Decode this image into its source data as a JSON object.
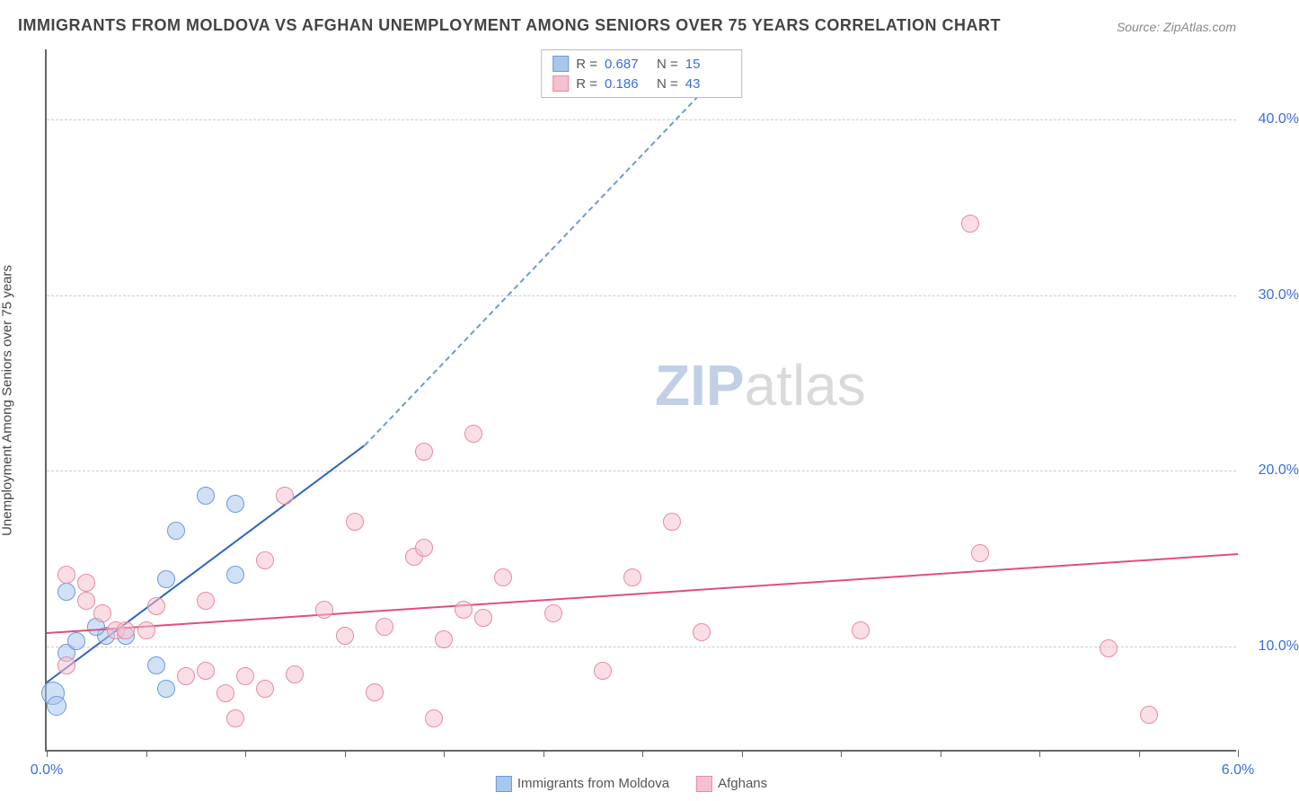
{
  "title": "IMMIGRANTS FROM MOLDOVA VS AFGHAN UNEMPLOYMENT AMONG SENIORS OVER 75 YEARS CORRELATION CHART",
  "source": "Source: ZipAtlas.com",
  "ylabel": "Unemployment Among Seniors over 75 years",
  "watermark_z": "ZIP",
  "watermark_rest": "atlas",
  "chart": {
    "type": "scatter",
    "xlim": [
      0.0,
      6.0
    ],
    "ylim": [
      4.0,
      44.0
    ],
    "yticks": [
      10.0,
      20.0,
      30.0,
      40.0
    ],
    "ytick_labels": [
      "10.0%",
      "20.0%",
      "30.0%",
      "40.0%"
    ],
    "xtick_positions": [
      0.0,
      0.5,
      1.0,
      1.5,
      2.0,
      2.5,
      3.0,
      3.5,
      4.0,
      4.5,
      5.0,
      5.5,
      6.0
    ],
    "xtick_labels_show": {
      "0.0": "0.0%",
      "6.0": "6.0%"
    },
    "grid_color": "#cccccc",
    "axis_color": "#666666",
    "background_color": "#ffffff",
    "tick_label_color": "#3a6fd8"
  },
  "series": [
    {
      "name": "Immigrants from Moldova",
      "fill_color": "#a9c7ec",
      "stroke_color": "#6b9bd8",
      "line_color": "#2f64c0",
      "marker_radius": 10,
      "R": "0.687",
      "N": "15",
      "trend": {
        "x1": 0.0,
        "y1": 8.0,
        "x2": 1.6,
        "y2": 21.5,
        "dashed_to_x": 3.5,
        "dashed_to_y": 44.0
      },
      "points": [
        {
          "x": 0.03,
          "y": 7.2,
          "r": 13
        },
        {
          "x": 0.05,
          "y": 6.5,
          "r": 11
        },
        {
          "x": 0.1,
          "y": 9.5,
          "r": 10
        },
        {
          "x": 0.15,
          "y": 10.2,
          "r": 10
        },
        {
          "x": 0.1,
          "y": 13.0,
          "r": 10
        },
        {
          "x": 0.3,
          "y": 10.5,
          "r": 10
        },
        {
          "x": 0.4,
          "y": 10.5,
          "r": 10
        },
        {
          "x": 0.55,
          "y": 8.8,
          "r": 10
        },
        {
          "x": 0.6,
          "y": 7.5,
          "r": 10
        },
        {
          "x": 0.6,
          "y": 13.7,
          "r": 10
        },
        {
          "x": 0.65,
          "y": 16.5,
          "r": 10
        },
        {
          "x": 0.8,
          "y": 18.5,
          "r": 10
        },
        {
          "x": 0.95,
          "y": 14.0,
          "r": 10
        },
        {
          "x": 0.95,
          "y": 18.0,
          "r": 10
        },
        {
          "x": 0.25,
          "y": 11.0,
          "r": 10
        }
      ]
    },
    {
      "name": "Afghans",
      "fill_color": "#f6c1cf",
      "stroke_color": "#e88ba4",
      "line_color": "#e04f7a",
      "marker_radius": 10,
      "R": "0.186",
      "N": "43",
      "trend": {
        "x1": 0.0,
        "y1": 10.8,
        "x2": 6.0,
        "y2": 15.3
      },
      "points": [
        {
          "x": 0.1,
          "y": 14.0
        },
        {
          "x": 0.1,
          "y": 8.8
        },
        {
          "x": 0.2,
          "y": 12.5
        },
        {
          "x": 0.2,
          "y": 13.5
        },
        {
          "x": 0.28,
          "y": 11.8
        },
        {
          "x": 0.35,
          "y": 10.8
        },
        {
          "x": 0.4,
          "y": 10.8
        },
        {
          "x": 0.5,
          "y": 10.8
        },
        {
          "x": 0.55,
          "y": 12.2
        },
        {
          "x": 0.7,
          "y": 8.2
        },
        {
          "x": 0.8,
          "y": 8.5
        },
        {
          "x": 0.8,
          "y": 12.5
        },
        {
          "x": 0.9,
          "y": 7.2
        },
        {
          "x": 0.95,
          "y": 5.8
        },
        {
          "x": 1.0,
          "y": 8.2
        },
        {
          "x": 1.1,
          "y": 7.5
        },
        {
          "x": 1.1,
          "y": 14.8
        },
        {
          "x": 1.2,
          "y": 18.5
        },
        {
          "x": 1.25,
          "y": 8.3
        },
        {
          "x": 1.4,
          "y": 12.0
        },
        {
          "x": 1.5,
          "y": 10.5
        },
        {
          "x": 1.55,
          "y": 17.0
        },
        {
          "x": 1.65,
          "y": 7.3
        },
        {
          "x": 1.7,
          "y": 11.0
        },
        {
          "x": 1.85,
          "y": 15.0
        },
        {
          "x": 1.9,
          "y": 15.5
        },
        {
          "x": 1.9,
          "y": 21.0
        },
        {
          "x": 1.95,
          "y": 5.8
        },
        {
          "x": 2.0,
          "y": 10.3
        },
        {
          "x": 2.15,
          "y": 22.0
        },
        {
          "x": 2.2,
          "y": 11.5
        },
        {
          "x": 2.3,
          "y": 13.8
        },
        {
          "x": 2.55,
          "y": 11.8
        },
        {
          "x": 2.8,
          "y": 8.5
        },
        {
          "x": 2.95,
          "y": 13.8
        },
        {
          "x": 3.15,
          "y": 17.0
        },
        {
          "x": 3.3,
          "y": 10.7
        },
        {
          "x": 4.1,
          "y": 10.8
        },
        {
          "x": 4.65,
          "y": 34.0
        },
        {
          "x": 4.7,
          "y": 15.2
        },
        {
          "x": 5.35,
          "y": 9.8
        },
        {
          "x": 5.55,
          "y": 6.0
        },
        {
          "x": 2.1,
          "y": 12.0
        }
      ]
    }
  ],
  "legend_bottom": [
    {
      "label": "Immigrants from Moldova",
      "fill": "#a9c7ec",
      "stroke": "#6b9bd8"
    },
    {
      "label": "Afghans",
      "fill": "#f6c1cf",
      "stroke": "#e88ba4"
    }
  ]
}
